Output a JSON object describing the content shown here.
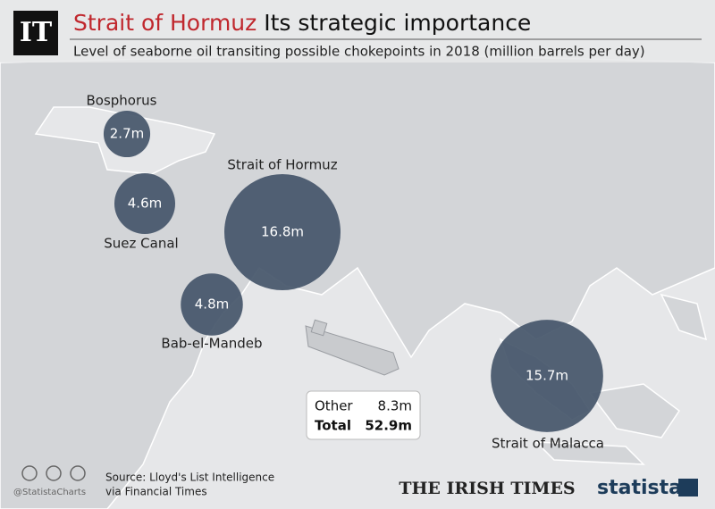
{
  "header": {
    "logo": "IT",
    "title_highlight": "Strait of Hormuz",
    "title_rest": "Its strategic importance",
    "subtitle": "Level of seaborne oil transiting possible chokepoints in 2018 (million barrels per day)"
  },
  "bubbles": [
    {
      "name": "Bosphorus",
      "value": 2.7,
      "value_label": "2.7m"
    },
    {
      "name": "Suez Canal",
      "value": 4.6,
      "value_label": "4.6m"
    },
    {
      "name": "Strait of Hormuz",
      "value": 16.8,
      "value_label": "16.8m"
    },
    {
      "name": "Bab-el-Mandeb",
      "value": 4.8,
      "value_label": "4.8m"
    },
    {
      "name": "Strait of Malacca",
      "value": 15.7,
      "value_label": "15.7m"
    }
  ],
  "summary": [
    {
      "label": "Other",
      "value": "8.3m"
    },
    {
      "label": "Total",
      "value": "52.9m"
    }
  ],
  "footer": {
    "handle": "@StatistaCharts",
    "source_line1": "Source: Lloyd's List Intelligence",
    "source_line2": "via Financial Times",
    "publisher": "THE IRISH TIMES",
    "brand": "statista"
  }
}
